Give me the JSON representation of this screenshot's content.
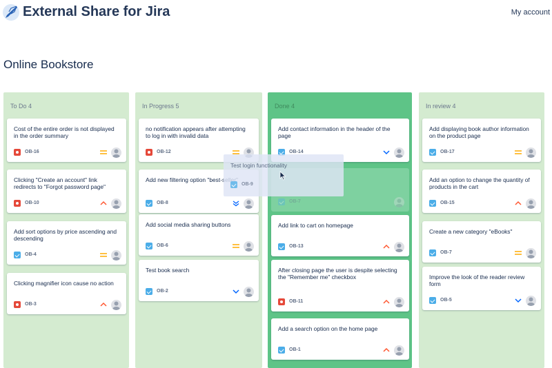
{
  "header": {
    "app_title": "External Share for Jira",
    "account_label": "My account"
  },
  "board": {
    "title": "Online Bookstore",
    "columns": [
      {
        "title": "To Do 4",
        "cards": [
          {
            "summary": "Cost of the entire order is not displayed in the order summary",
            "key": "OB-16",
            "type": "bug",
            "priority": "medium"
          },
          {
            "summary": "Clicking \"Create an account\" link redirects to \"Forgot password page\"",
            "key": "OB-10",
            "type": "bug",
            "priority": "high"
          },
          {
            "summary": "Add sort options by price ascending and descending",
            "key": "OB-4",
            "type": "task",
            "priority": "medium"
          },
          {
            "summary": "Clicking magnifier icon cause no action",
            "key": "OB-3",
            "type": "bug",
            "priority": "high"
          }
        ]
      },
      {
        "title": "In Progress 5",
        "cards": [
          {
            "summary": "no notification appears after attempting to log in with invalid data",
            "key": "OB-12",
            "type": "bug",
            "priority": "medium"
          },
          {
            "summary": "Add new filtering option \"best-seller\"",
            "key": "OB-8",
            "type": "task",
            "priority": "lowest"
          },
          {
            "summary": "Add social media sharing buttons",
            "key": "OB-6",
            "type": "task",
            "priority": "medium"
          },
          {
            "summary": "Test book search",
            "key": "OB-2",
            "type": "task",
            "priority": "low"
          }
        ]
      },
      {
        "title": "Done 4",
        "cards": [
          {
            "summary": "Add contact information in the header of the page",
            "key": "OB-14",
            "type": "task",
            "priority": "low"
          },
          {
            "summary": "",
            "key": "OB-7",
            "type": "task",
            "priority": "medium"
          },
          {
            "summary": "Add link to cart on homepage",
            "key": "OB-13",
            "type": "task",
            "priority": "high"
          },
          {
            "summary": "After closing page the user is despite selecting the \"Remember me\" checkbox",
            "key": "OB-11",
            "type": "bug",
            "priority": "high"
          },
          {
            "summary": "Add a search option on the home page",
            "key": "OB-1",
            "type": "task",
            "priority": "high"
          }
        ]
      },
      {
        "title": "In review 4",
        "cards": [
          {
            "summary": "Add displaying book author information on the product page",
            "key": "OB-17",
            "type": "task",
            "priority": "medium"
          },
          {
            "summary": "Add an option to change the quantity of products in the cart",
            "key": "OB-15",
            "type": "task",
            "priority": "high"
          },
          {
            "summary": "Create a new category \"eBooks\"",
            "key": "OB-7",
            "type": "task",
            "priority": "medium"
          },
          {
            "summary": "Improve the look of the reader review form",
            "key": "OB-5",
            "type": "task",
            "priority": "low"
          }
        ]
      }
    ],
    "dragging": {
      "summary": "Test login functionality",
      "key": "OB-9",
      "type": "task"
    }
  },
  "colors": {
    "column_bg": "#d4ebd0",
    "done_column_bg": "#5ec487",
    "bug": "#e5493a",
    "task": "#4bade8",
    "priority_high": "#ff5630",
    "priority_medium": "#ffab00",
    "priority_low": "#0065ff"
  }
}
